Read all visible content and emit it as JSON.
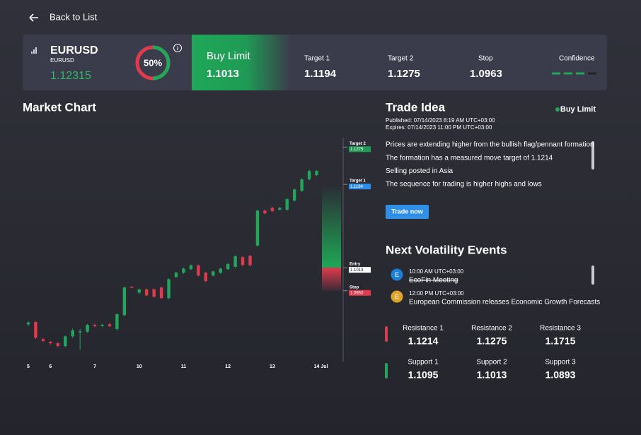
{
  "nav": {
    "back": "Back to List"
  },
  "instrument": {
    "symbol": "EURUSD",
    "name": "EURUSD",
    "price": 1.12315
  },
  "gauge": {
    "value": 50,
    "value_label": "50%"
  },
  "order": {
    "type": "Buy Limit",
    "price": 1.1013
  },
  "summary": [
    {
      "label": "Target 1",
      "value": 1.1194
    },
    {
      "label": "Target 2",
      "value": 1.1275
    },
    {
      "label": "Stop",
      "value": 1.0963
    }
  ],
  "confidence": {
    "label": "Confidence",
    "level": 3,
    "max": 4
  },
  "chart_data": {
    "type": "candlestick",
    "title": "Market Chart",
    "categories": [
      "5",
      null,
      null,
      "6",
      null,
      null,
      null,
      null,
      null,
      "7",
      null,
      null,
      null,
      null,
      null,
      "10",
      null,
      null,
      null,
      null,
      null,
      "11",
      null,
      null,
      null,
      null,
      null,
      "12",
      null,
      null,
      null,
      null,
      null,
      "13",
      null,
      null,
      null,
      null,
      null,
      "14 Jul"
    ],
    "open": [
      1.089,
      1.0895,
      1.0858,
      1.0852,
      1.0849,
      1.0843,
      1.0864,
      1.0874,
      1.0874,
      1.0889,
      1.0887,
      1.089,
      1.088,
      1.091,
      1.0972,
      1.0959,
      1.0966,
      1.0966,
      1.097,
      1.0947,
      1.0993,
      1.1002,
      1.101,
      1.1018,
      1.1002,
      1.0996,
      1.1002,
      1.101,
      1.1015,
      1.1036,
      1.1039,
      1.1061,
      1.1137,
      1.1143,
      1.1139,
      1.1139,
      1.1159,
      1.118,
      1.1205,
      1.1214
    ],
    "high": [
      1.0897,
      1.0897,
      1.0861,
      1.0854,
      1.0851,
      1.0866,
      1.0881,
      1.088,
      1.0891,
      1.0891,
      1.0891,
      1.0893,
      1.0914,
      1.0972,
      1.0973,
      1.0968,
      1.0968,
      1.0968,
      1.0972,
      1.099,
      1.1004,
      1.1013,
      1.102,
      1.102,
      1.1004,
      1.1007,
      1.1013,
      1.1023,
      1.104,
      1.1038,
      1.1041,
      1.1139,
      1.114,
      1.1145,
      1.1145,
      1.1164,
      1.1185,
      1.1207,
      1.1226,
      1.1225
    ],
    "low": [
      1.0886,
      1.0858,
      1.0852,
      1.0846,
      1.084,
      1.084,
      1.0861,
      1.0835,
      1.0872,
      1.0884,
      1.0885,
      1.0884,
      1.0876,
      1.0908,
      1.0969,
      1.0956,
      1.0951,
      1.0948,
      1.0945,
      1.0945,
      1.099,
      1.1,
      1.1008,
      1.0994,
      1.0982,
      1.0994,
      1.1,
      1.1008,
      1.1013,
      1.1017,
      1.1016,
      1.1059,
      1.1129,
      1.1134,
      1.1137,
      1.1137,
      1.1157,
      1.1178,
      1.1203,
      1.1212
    ],
    "close": [
      1.0894,
      1.0861,
      1.0854,
      1.0849,
      1.0843,
      1.0864,
      1.0877,
      1.0875,
      1.0889,
      1.0886,
      1.0889,
      1.0886,
      1.0912,
      1.097,
      1.097,
      1.0966,
      1.0953,
      1.095,
      1.0947,
      1.0988,
      1.1002,
      1.1011,
      1.1018,
      1.0996,
      1.0984,
      1.1005,
      1.1011,
      1.1021,
      1.1038,
      1.1019,
      1.1018,
      1.1137,
      1.1131,
      1.1136,
      1.1143,
      1.1162,
      1.1183,
      1.1205,
      1.1223,
      1.1223
    ],
    "up_color": "#22a65a",
    "down_color": "#e03a4d",
    "ylim": [
      1.081,
      1.13
    ],
    "levels": [
      {
        "label": "Target 2",
        "value": 1.1275,
        "color": "#1f9d55"
      },
      {
        "label": "Target 1",
        "value": 1.1194,
        "color": "#2f8fe6"
      },
      {
        "label": "Entry",
        "value": 1.1013,
        "color": "#ffffff"
      },
      {
        "label": "Stop",
        "value": 1.0963,
        "color": "#e03a4d"
      }
    ]
  },
  "trade_idea": {
    "title": "Trade Idea",
    "signal": "Buy Limit",
    "published": "Published: 07/14/2023 8:19 AM UTC+03:00",
    "expires": "Expires: 07/14/2023 11:00 PM UTC+03:00",
    "points": [
      "Prices are extending higher from the bullish flag/pennant formation",
      "The formation has a measured move target of 1.1214",
      "Selling posted in Asia",
      "The sequence for trading is higher highs and lows"
    ],
    "button": "Trade now"
  },
  "events": {
    "title": "Next Volatility Events",
    "items": [
      {
        "icon": "E",
        "color": "#1e7fd6",
        "time": "10:00 AM UTC+03:00",
        "name": "EcoFin Meeting",
        "struck": true
      },
      {
        "icon": "E",
        "color": "#e0a42b",
        "time": "12:00 PM UTC+03:00",
        "name": "European Commission releases Economic Growth Forecasts",
        "struck": false
      }
    ]
  },
  "resistance": [
    {
      "label": "Resistance 1",
      "value": 1.1214
    },
    {
      "label": "Resistance 2",
      "value": 1.1275
    },
    {
      "label": "Resistance 3",
      "value": 1.1715
    }
  ],
  "support": [
    {
      "label": "Support 1",
      "value": 1.1095
    },
    {
      "label": "Support 2",
      "value": 1.1013
    },
    {
      "label": "Support 3",
      "value": 1.0893
    }
  ]
}
